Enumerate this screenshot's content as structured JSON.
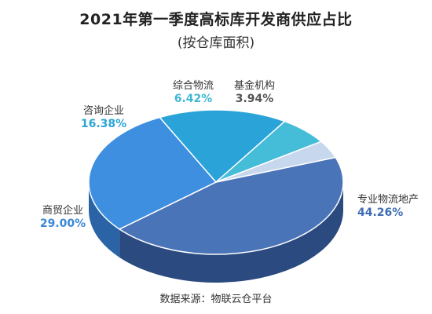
{
  "chart_data": {
    "type": "pie",
    "title": "2021年第一季度高标库开发商供应占比",
    "subtitle": "(按仓库面积)",
    "slices": [
      {
        "name": "专业物流地产",
        "value_label": "44.26%",
        "value": 44.26,
        "color": "#4a74b8",
        "side": "#2a4a80",
        "label_color": "#3f6db5"
      },
      {
        "name": "商贸企业",
        "value_label": "29.00%",
        "value": 29.0,
        "color": "#3e8fe0",
        "side": "#2a64a6",
        "label_color": "#3a88d8"
      },
      {
        "name": "咨询企业",
        "value_label": "16.38%",
        "value": 16.38,
        "color": "#2aa4d8",
        "side": "#1d7aa6",
        "label_color": "#2aa4d8"
      },
      {
        "name": "综合物流",
        "value_label": "6.42%",
        "value": 6.42,
        "color": "#45bcd8",
        "side": "#2f8ea6",
        "label_color": "#3fb8d4"
      },
      {
        "name": "基金机构",
        "value_label": "3.94%",
        "value": 3.94,
        "color": "#c6d7ee",
        "side": "#95a8c4",
        "label_color": "#555555"
      }
    ]
  },
  "source_text": "数据来源：物联云仓平台"
}
